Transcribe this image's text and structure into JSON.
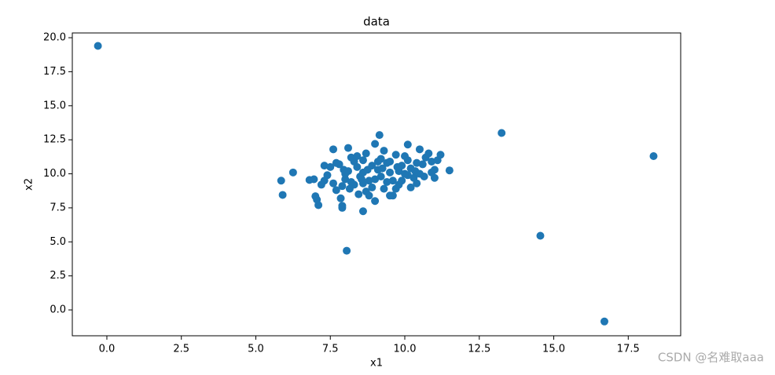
{
  "chart_data": {
    "type": "scatter",
    "title": "data",
    "x_label": "x1",
    "y_label": "x2",
    "color": "#1f77b4",
    "watermark": "CSDN @名难取aaa",
    "xlim": [
      -1.16,
      19.26
    ],
    "ylim": [
      -1.9,
      20.35
    ],
    "xticks": [
      {
        "value": 0,
        "label": "0.0"
      },
      {
        "value": 2.5,
        "label": "2.5"
      },
      {
        "value": 5,
        "label": "5.0"
      },
      {
        "value": 7.5,
        "label": "7.5"
      },
      {
        "value": 10,
        "label": "10.0"
      },
      {
        "value": 12.5,
        "label": "12.5"
      },
      {
        "value": 15,
        "label": "15.0"
      },
      {
        "value": 17.5,
        "label": "17.5"
      }
    ],
    "yticks": [
      {
        "value": 0,
        "label": "0.0"
      },
      {
        "value": 2.5,
        "label": "2.5"
      },
      {
        "value": 5,
        "label": "5.0"
      },
      {
        "value": 7.5,
        "label": "7.5"
      },
      {
        "value": 10,
        "label": "10.0"
      },
      {
        "value": 12.5,
        "label": "12.5"
      },
      {
        "value": 15,
        "label": "15.0"
      },
      {
        "value": 17.5,
        "label": "17.5"
      },
      {
        "value": 20,
        "label": "20.0"
      }
    ],
    "x": [
      -0.3,
      13.25,
      18.35,
      14.55,
      16.7,
      8.05,
      5.85,
      5.9,
      6.25,
      11.5,
      7.0,
      7.1,
      7.9,
      8.6,
      9.15,
      7.6,
      8.1,
      10.1,
      6.8,
      6.95,
      7.05,
      7.85,
      7.9,
      7.3,
      7.5,
      7.7,
      7.8,
      7.4,
      7.3,
      7.2,
      7.6,
      7.7,
      7.9,
      8.0,
      8.1,
      8.2,
      8.3,
      8.4,
      8.5,
      8.6,
      8.7,
      8.8,
      8.9,
      9.0,
      9.1,
      9.2,
      9.3,
      9.4,
      9.5,
      9.6,
      9.7,
      9.8,
      9.9,
      10.0,
      10.1,
      10.2,
      10.3,
      10.4,
      10.5,
      10.6,
      10.7,
      10.8,
      10.9,
      11.0,
      11.1,
      11.2,
      11.0,
      10.9,
      8.45,
      8.7,
      9.0,
      9.7,
      10.5,
      8.0,
      8.3,
      8.6,
      8.9,
      9.2,
      9.5,
      9.8,
      10.1,
      10.4,
      9.3,
      9.6,
      9.0,
      8.8,
      9.4,
      9.9,
      10.2,
      8.4,
      8.6,
      9.1,
      9.5,
      10.0,
      8.2,
      7.95,
      8.15,
      8.55,
      9.25,
      9.75,
      10.35,
      10.65,
      8.75
    ],
    "values": [
      19.4,
      13.0,
      11.3,
      5.45,
      -0.85,
      4.35,
      9.5,
      8.45,
      10.1,
      10.25,
      8.35,
      7.7,
      7.5,
      7.25,
      12.85,
      11.8,
      11.9,
      12.15,
      9.55,
      9.6,
      8.1,
      8.2,
      7.65,
      10.6,
      10.5,
      10.8,
      10.7,
      9.9,
      9.5,
      9.2,
      9.3,
      8.8,
      9.1,
      9.6,
      10.2,
      11.2,
      10.9,
      10.5,
      9.8,
      9.3,
      8.7,
      8.4,
      9.0,
      9.6,
      10.3,
      11.1,
      11.7,
      10.8,
      10.1,
      9.5,
      8.9,
      9.2,
      10.6,
      11.3,
      11.0,
      10.4,
      9.7,
      9.3,
      10.0,
      10.7,
      11.2,
      11.5,
      10.9,
      10.3,
      11.0,
      11.4,
      9.7,
      10.1,
      8.5,
      11.5,
      12.2,
      11.4,
      11.8,
      10.0,
      9.2,
      10.1,
      10.6,
      9.8,
      10.9,
      10.2,
      9.9,
      10.8,
      8.9,
      8.4,
      8.0,
      9.5,
      9.4,
      9.5,
      9.0,
      11.3,
      11.0,
      10.9,
      8.4,
      10.0,
      9.4,
      10.3,
      8.9,
      9.6,
      10.4,
      10.5,
      10.2,
      9.8,
      10.3
    ]
  }
}
